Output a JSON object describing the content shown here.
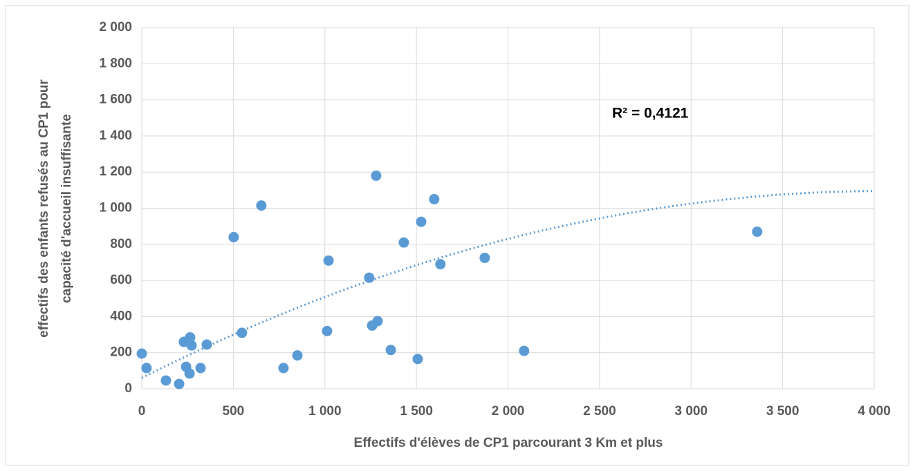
{
  "chart_data": {
    "type": "scatter",
    "xlabel": "Effectifs d'élèves de CP1 parcourant 3 Km et plus",
    "ylabel": [
      "effectifs des enfants refusés au CP1 pour",
      "capacité d'accueil insuffisante"
    ],
    "annotation": "R² = 0,4121",
    "color": "#5b9bd5",
    "grid": true,
    "trendline": {
      "type": "polynomial",
      "coefficients": [
        60,
        0.51125,
        -6.3125e-05
      ],
      "color": "#5b9bd5"
    },
    "xlim": [
      0,
      4000
    ],
    "ylim": [
      0,
      2000
    ],
    "xticks": [
      0,
      500,
      {
        "value": 1000,
        "label": "1 000"
      },
      {
        "value": 1500,
        "label": "1 500"
      },
      {
        "value": 2000,
        "label": "2 000"
      },
      {
        "value": 2500,
        "label": "2 500"
      },
      {
        "value": 3000,
        "label": "3 000"
      },
      {
        "value": 3500,
        "label": "3 500"
      },
      {
        "value": 4000,
        "label": "4 000"
      }
    ],
    "yticks": [
      0,
      200,
      400,
      600,
      800,
      {
        "value": 1000,
        "label": "1 000"
      },
      {
        "value": 1200,
        "label": "1 200"
      },
      {
        "value": 1400,
        "label": "1 400"
      },
      {
        "value": 1600,
        "label": "1 600"
      },
      {
        "value": 1800,
        "label": "1 800"
      },
      {
        "value": 2000,
        "label": "2 000"
      }
    ],
    "x": [
      0,
      26,
      132,
      204,
      230,
      264,
      272,
      242,
      261,
      321,
      355,
      502,
      547,
      653,
      774,
      850,
      1012,
      1020,
      1242,
      1258,
      1280,
      1288,
      1360,
      1431,
      1507,
      1526,
      1597,
      1631,
      1873,
      2088,
      3361
    ],
    "values": [
      195,
      115,
      46,
      27,
      260,
      285,
      240,
      122,
      85,
      115,
      245,
      840,
      310,
      1015,
      115,
      185,
      320,
      710,
      615,
      350,
      1180,
      375,
      215,
      810,
      165,
      925,
      1050,
      690,
      725,
      210,
      870
    ]
  }
}
